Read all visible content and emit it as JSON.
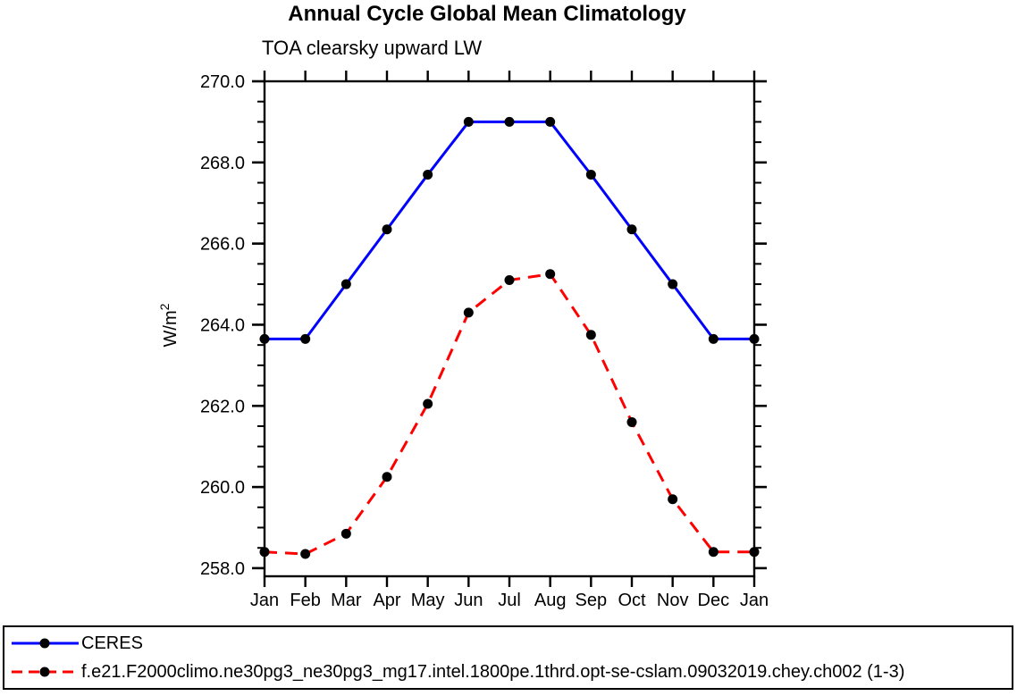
{
  "chart_data": {
    "type": "line",
    "title": "Annual Cycle Global Mean Climatology",
    "subtitle": "TOA clearsky upward LW",
    "ylabel": {
      "base": "W/m",
      "sup": "2"
    },
    "categories": [
      "Jan",
      "Feb",
      "Mar",
      "Apr",
      "May",
      "Jun",
      "Jul",
      "Aug",
      "Sep",
      "Oct",
      "Nov",
      "Dec",
      "Jan"
    ],
    "series": [
      {
        "name": "CERES",
        "color": "#0000ff",
        "line_style": "solid",
        "marker": "filled-circle",
        "marker_color": "#000000",
        "values": [
          263.65,
          263.65,
          265.0,
          266.35,
          267.7,
          269.0,
          269.0,
          269.0,
          267.7,
          266.35,
          265.0,
          263.65,
          263.65
        ]
      },
      {
        "name": "f.e21.F2000climo.ne30pg3_ne30pg3_mg17.intel.1800pe.1thrd.opt-se-cslam.09032019.chey.ch002 (1-3)",
        "color": "#ff0000",
        "line_style": "dashed",
        "marker": "filled-circle",
        "marker_color": "#000000",
        "values": [
          258.4,
          258.35,
          258.85,
          260.25,
          262.05,
          264.3,
          265.1,
          265.25,
          263.75,
          261.6,
          259.7,
          258.4,
          258.4
        ]
      }
    ],
    "ylim": [
      257.8,
      270.0
    ],
    "yticks": [
      {
        "value": 258.0,
        "label": "258.0"
      },
      {
        "value": 260.0,
        "label": "260.0"
      },
      {
        "value": 262.0,
        "label": "262.0"
      },
      {
        "value": 264.0,
        "label": "264.0"
      },
      {
        "value": 266.0,
        "label": "266.0"
      },
      {
        "value": 268.0,
        "label": "268.0"
      },
      {
        "value": 270.0,
        "label": "270.0"
      }
    ],
    "y_minor_step": 0.5,
    "grid": false,
    "legend_position": "bottom-box",
    "axis_color": "#000000"
  }
}
